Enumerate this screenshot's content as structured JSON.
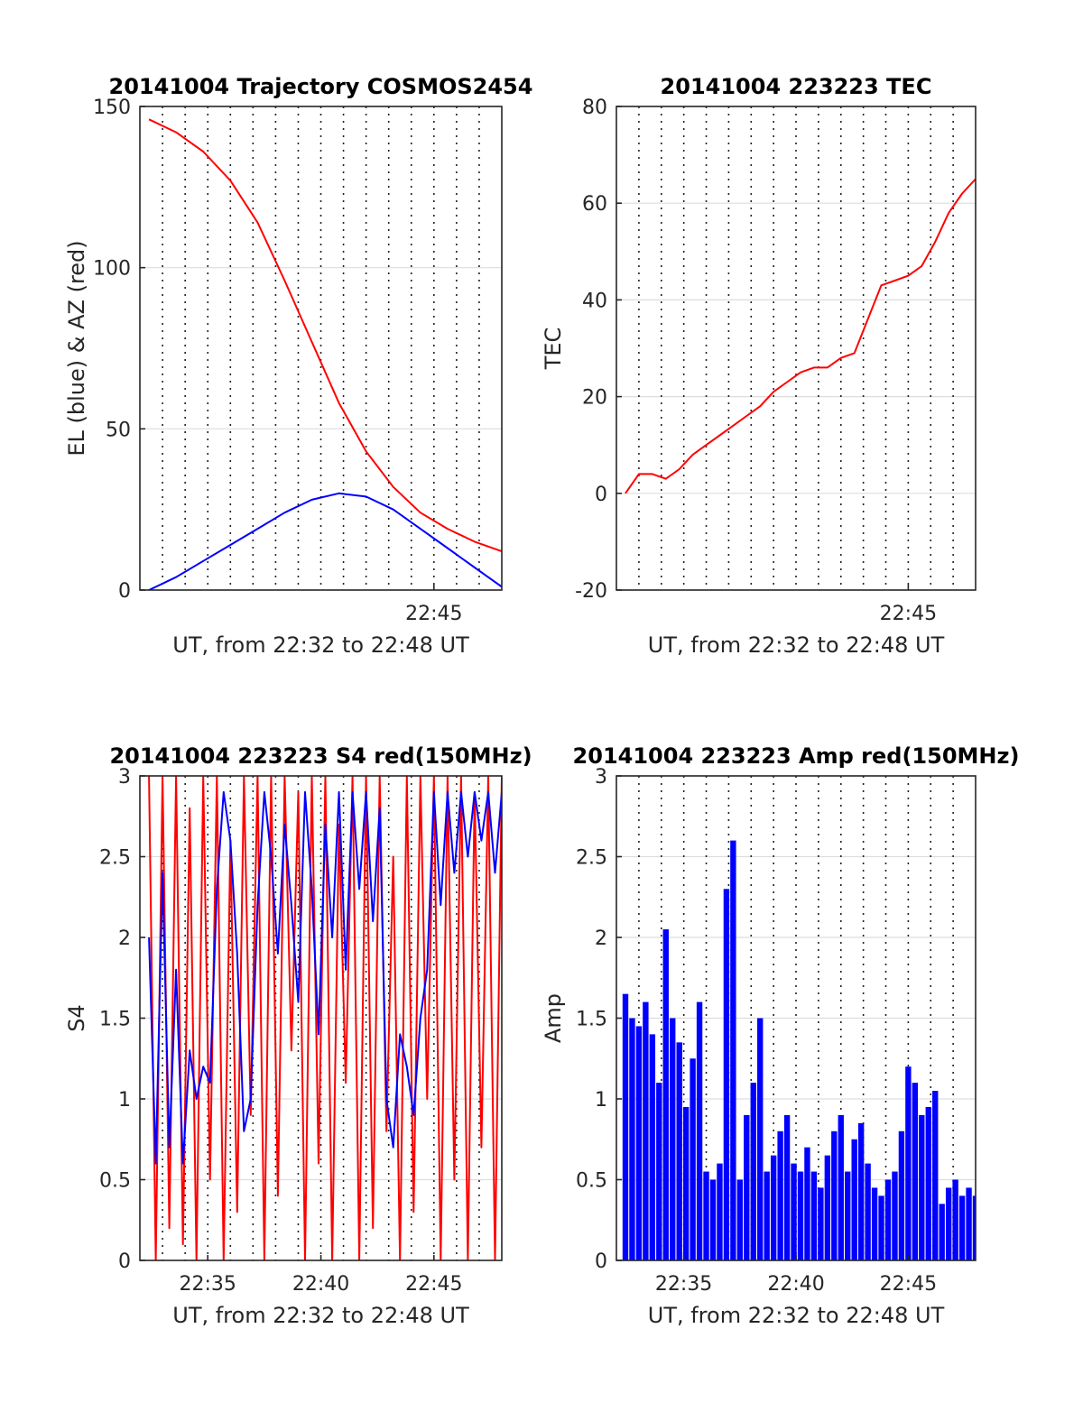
{
  "figure": {
    "colors": {
      "red": "#ff0000",
      "blue": "#0000ff",
      "axis": "#262626",
      "grid": "#dddddd"
    }
  },
  "chart_data": [
    {
      "id": "trajectory",
      "type": "line",
      "title": "20141004 Trajectory COSMOS2454",
      "xlabel": "UT, from 22:32 to 22:48 UT",
      "ylabel": "EL (blue) & AZ (red)",
      "xlim": [
        22.5333,
        22.8
      ],
      "ylim": [
        0,
        150
      ],
      "yticks": [
        0,
        50,
        100,
        150
      ],
      "yticklabels": [
        "0",
        "50",
        "100",
        "150"
      ],
      "xticks": [
        22.75
      ],
      "xticklabels": [
        "22:45"
      ],
      "grid": true,
      "series": [
        {
          "color": "#ff0000",
          "x": [
            22.54,
            22.56,
            22.58,
            22.6,
            22.62,
            22.64,
            22.66,
            22.68,
            22.7,
            22.72,
            22.74,
            22.76,
            22.78,
            22.8
          ],
          "y": [
            146,
            142,
            136,
            127,
            114,
            96,
            77,
            58,
            43,
            32,
            24,
            19,
            15,
            12
          ]
        },
        {
          "color": "#0000ff",
          "x": [
            22.54,
            22.56,
            22.58,
            22.6,
            22.62,
            22.64,
            22.66,
            22.68,
            22.7,
            22.72,
            22.74,
            22.76,
            22.78,
            22.8
          ],
          "y": [
            0,
            4,
            9,
            14,
            19,
            24,
            28,
            30,
            29,
            25,
            19,
            13,
            7,
            1
          ]
        }
      ]
    },
    {
      "id": "tec",
      "type": "line",
      "title": "20141004 223223 TEC",
      "xlabel": "UT, from 22:32 to 22:48 UT",
      "ylabel": "TEC",
      "xlim": [
        22.5333,
        22.8
      ],
      "ylim": [
        -20,
        80
      ],
      "yticks": [
        -20,
        0,
        20,
        40,
        60,
        80
      ],
      "yticklabels": [
        "-20",
        "0",
        "20",
        "40",
        "60",
        "80"
      ],
      "xticks": [
        22.75
      ],
      "xticklabels": [
        "22:45"
      ],
      "grid": true,
      "series": [
        {
          "color": "#ff0000",
          "x": [
            22.54,
            22.55,
            22.56,
            22.57,
            22.58,
            22.59,
            22.6,
            22.61,
            22.62,
            22.63,
            22.64,
            22.65,
            22.66,
            22.67,
            22.68,
            22.69,
            22.7,
            22.71,
            22.72,
            22.73,
            22.74,
            22.75,
            22.76,
            22.77,
            22.78,
            22.79,
            22.8
          ],
          "y": [
            0,
            4,
            4,
            3,
            5,
            8,
            10,
            12,
            14,
            16,
            18,
            21,
            23,
            25,
            26,
            26,
            28,
            29,
            36,
            43,
            44,
            45,
            47,
            52,
            58,
            62,
            65
          ]
        }
      ]
    },
    {
      "id": "s4",
      "type": "line",
      "title": "20141004 223223 S4 red(150MHz)",
      "xlabel": "UT, from 22:32 to 22:48 UT",
      "ylabel": "S4",
      "xlim": [
        22.5333,
        22.8
      ],
      "ylim": [
        0,
        3
      ],
      "yticks": [
        0,
        0.5,
        1,
        1.5,
        2,
        2.5,
        3
      ],
      "yticklabels": [
        "0",
        "0.5",
        "1",
        "1.5",
        "2",
        "2.5",
        "3"
      ],
      "xticks": [
        22.5833,
        22.6667,
        22.75
      ],
      "xticklabels": [
        "22:35",
        "22:40",
        "22:45"
      ],
      "grid": true,
      "series": [
        {
          "color": "#ff0000",
          "x": [
            22.54,
            22.545,
            22.55,
            22.555,
            22.56,
            22.565,
            22.57,
            22.575,
            22.58,
            22.585,
            22.59,
            22.595,
            22.6,
            22.605,
            22.61,
            22.615,
            22.62,
            22.625,
            22.63,
            22.635,
            22.64,
            22.645,
            22.65,
            22.655,
            22.66,
            22.665,
            22.67,
            22.675,
            22.68,
            22.685,
            22.69,
            22.695,
            22.7,
            22.705,
            22.71,
            22.715,
            22.72,
            22.725,
            22.73,
            22.735,
            22.74,
            22.745,
            22.75,
            22.755,
            22.76,
            22.765,
            22.77,
            22.775,
            22.78,
            22.785,
            22.79,
            22.795,
            22.8
          ],
          "y": [
            3,
            0,
            3,
            0.2,
            3,
            0.1,
            2.8,
            0,
            3,
            0.5,
            3,
            0,
            2.6,
            0.3,
            3,
            0.9,
            3,
            0,
            3,
            0.4,
            3,
            1.3,
            2.9,
            0,
            3,
            0.6,
            3,
            0,
            2.7,
            1.1,
            3,
            0,
            3,
            0.2,
            3,
            0.8,
            2.5,
            0,
            3,
            0.3,
            3,
            1.0,
            3,
            0,
            3,
            0.5,
            3,
            0,
            2.9,
            0.7,
            3,
            0,
            3
          ]
        },
        {
          "color": "#0000ff",
          "x": [
            22.54,
            22.545,
            22.55,
            22.555,
            22.56,
            22.565,
            22.57,
            22.575,
            22.58,
            22.585,
            22.59,
            22.595,
            22.6,
            22.605,
            22.61,
            22.615,
            22.62,
            22.625,
            22.63,
            22.635,
            22.64,
            22.645,
            22.65,
            22.655,
            22.66,
            22.665,
            22.67,
            22.675,
            22.68,
            22.685,
            22.69,
            22.695,
            22.7,
            22.705,
            22.71,
            22.715,
            22.72,
            22.725,
            22.73,
            22.735,
            22.74,
            22.745,
            22.75,
            22.755,
            22.76,
            22.765,
            22.77,
            22.775,
            22.78,
            22.785,
            22.79,
            22.795,
            22.8
          ],
          "y": [
            2.0,
            0.6,
            2.4,
            0.7,
            1.8,
            0.6,
            1.3,
            1.0,
            1.2,
            1.1,
            2.3,
            2.9,
            2.6,
            1.9,
            0.8,
            1.0,
            2.2,
            2.9,
            2.5,
            1.9,
            2.7,
            2.2,
            1.6,
            2.9,
            2.3,
            1.4,
            2.7,
            2.0,
            2.9,
            1.8,
            2.9,
            2.3,
            2.9,
            2.1,
            2.8,
            1.0,
            0.7,
            1.4,
            1.2,
            0.9,
            1.5,
            1.8,
            2.9,
            2.2,
            2.9,
            2.4,
            2.9,
            2.5,
            2.9,
            2.6,
            2.9,
            2.4,
            2.9
          ]
        }
      ]
    },
    {
      "id": "amp",
      "type": "bar",
      "title": "20141004 223223 Amp red(150MHz)",
      "xlabel": "UT, from 22:32 to 22:48 UT",
      "ylabel": "Amp",
      "xlim": [
        22.5333,
        22.8
      ],
      "ylim": [
        0,
        3
      ],
      "yticks": [
        0,
        0.5,
        1,
        1.5,
        2,
        2.5,
        3
      ],
      "yticklabels": [
        "0",
        "0.5",
        "1",
        "1.5",
        "2",
        "2.5",
        "3"
      ],
      "xticks": [
        22.5833,
        22.6667,
        22.75
      ],
      "xticklabels": [
        "22:35",
        "22:40",
        "22:45"
      ],
      "grid": true,
      "series": [
        {
          "color": "#0000ff",
          "x": [
            22.54,
            22.545,
            22.55,
            22.555,
            22.56,
            22.565,
            22.57,
            22.575,
            22.58,
            22.585,
            22.59,
            22.595,
            22.6,
            22.605,
            22.61,
            22.615,
            22.62,
            22.625,
            22.63,
            22.635,
            22.64,
            22.645,
            22.65,
            22.655,
            22.66,
            22.665,
            22.67,
            22.675,
            22.68,
            22.685,
            22.69,
            22.695,
            22.7,
            22.705,
            22.71,
            22.715,
            22.72,
            22.725,
            22.73,
            22.735,
            22.74,
            22.745,
            22.75,
            22.755,
            22.76,
            22.765,
            22.77,
            22.775,
            22.78,
            22.785,
            22.79,
            22.795,
            22.8
          ],
          "y": [
            1.65,
            1.5,
            1.45,
            1.6,
            1.4,
            1.1,
            2.05,
            1.5,
            1.35,
            0.95,
            1.25,
            1.6,
            0.55,
            0.5,
            0.6,
            2.3,
            2.6,
            0.5,
            0.9,
            1.1,
            1.5,
            0.55,
            0.65,
            0.8,
            0.9,
            0.6,
            0.55,
            0.7,
            0.55,
            0.45,
            0.65,
            0.8,
            0.9,
            0.55,
            0.75,
            0.85,
            0.6,
            0.45,
            0.4,
            0.5,
            0.55,
            0.8,
            1.2,
            1.1,
            0.9,
            0.95,
            1.05,
            0.35,
            0.45,
            0.5,
            0.4,
            0.45,
            0.4
          ]
        }
      ]
    }
  ]
}
